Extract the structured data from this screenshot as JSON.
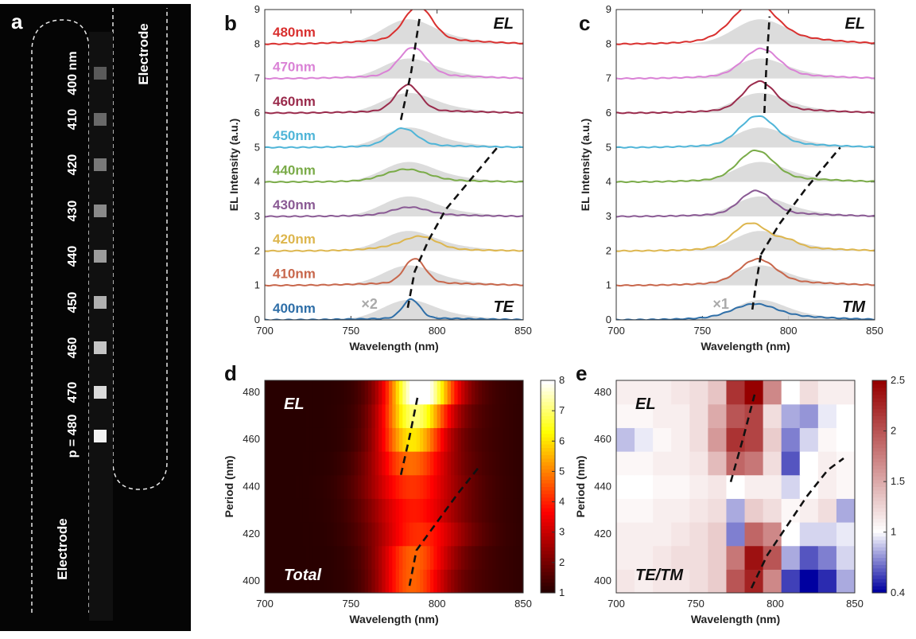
{
  "panel_a": {
    "letter": "a",
    "electrode_label_right": "Electrode",
    "electrode_label_left": "Electrode",
    "period_labels": [
      "400 nm",
      "410",
      "420",
      "430",
      "440",
      "450",
      "460",
      "470",
      "p = 480"
    ],
    "background_color": "#050505"
  },
  "chart_data": [
    {
      "id": "b",
      "type": "line",
      "letter": "b",
      "xlabel": "Wavelength (nm)",
      "ylabel": "EL Intensity (a.u.)",
      "xlim": [
        700,
        850
      ],
      "ylim": [
        0,
        9
      ],
      "xticks": [
        700,
        750,
        800,
        850
      ],
      "yticks": [
        0,
        1,
        2,
        3,
        4,
        5,
        6,
        7,
        8,
        9
      ],
      "corner_label_top": "EL",
      "corner_label_bottom": "TE",
      "multiplier": "×2",
      "series": [
        {
          "name": "400nm",
          "color": "#2f6fa8",
          "offset": 0,
          "peaks": [
            {
              "c": 785,
              "w": 5,
              "a": 0.55
            }
          ],
          "broad_amp": 0.05
        },
        {
          "name": "410nm",
          "color": "#c8674c",
          "offset": 1,
          "peaks": [
            {
              "c": 787,
              "w": 6,
              "a": 0.7
            }
          ],
          "broad_amp": 0.08
        },
        {
          "name": "420nm",
          "color": "#ddb64e",
          "offset": 2,
          "peaks": [
            {
              "c": 791,
              "w": 9,
              "a": 0.3
            },
            {
              "c": 780,
              "w": 14,
              "a": 0.1
            }
          ],
          "broad_amp": 0.05
        },
        {
          "name": "430nm",
          "color": "#8a5a94",
          "offset": 3,
          "peaks": [
            {
              "c": 784,
              "w": 10,
              "a": 0.22
            }
          ],
          "broad_amp": 0.05
        },
        {
          "name": "440nm",
          "color": "#7aab48",
          "offset": 4,
          "peaks": [
            {
              "c": 782,
              "w": 12,
              "a": 0.32
            }
          ],
          "broad_amp": 0.05
        },
        {
          "name": "450nm",
          "color": "#4fb5d8",
          "offset": 5,
          "peaks": [
            {
              "c": 780,
              "w": 8,
              "a": 0.5
            }
          ],
          "broad_amp": 0.06
        },
        {
          "name": "460nm",
          "color": "#9a2b4c",
          "offset": 6,
          "peaks": [
            {
              "c": 783,
              "w": 7,
              "a": 0.75
            }
          ],
          "broad_amp": 0.07
        },
        {
          "name": "470nm",
          "color": "#da82d6",
          "offset": 7,
          "peaks": [
            {
              "c": 786,
              "w": 8,
              "a": 0.8
            }
          ],
          "broad_amp": 0.1
        },
        {
          "name": "480nm",
          "color": "#d9302f",
          "offset": 8,
          "peaks": [
            {
              "c": 789,
              "w": 8,
              "a": 0.95
            }
          ],
          "broad_amp": 0.15
        }
      ],
      "dashed_lines": [
        [
          [
            779,
            5.8
          ],
          [
            785,
            7.2
          ],
          [
            790,
            8.8
          ]
        ],
        [
          [
            783,
            0.35
          ],
          [
            787,
            1.4
          ],
          [
            795,
            2.3
          ],
          [
            805,
            3.2
          ],
          [
            820,
            4.1
          ],
          [
            835,
            5.0
          ]
        ]
      ]
    },
    {
      "id": "c",
      "type": "line",
      "letter": "c",
      "xlabel": "Wavelength (nm)",
      "ylabel": "EL Intensity (a.u.)",
      "xlim": [
        700,
        850
      ],
      "ylim": [
        0,
        9
      ],
      "xticks": [
        700,
        750,
        800,
        850
      ],
      "yticks": [
        0,
        1,
        2,
        3,
        4,
        5,
        6,
        7,
        8,
        9
      ],
      "corner_label_top": "EL",
      "corner_label_bottom": "TM",
      "multiplier": "×1",
      "series": [
        {
          "name": "400nm",
          "color": "#2f6fa8",
          "offset": 0,
          "peaks": [
            {
              "c": 780,
              "w": 12,
              "a": 0.35
            }
          ],
          "broad_amp": 0.12
        },
        {
          "name": "410nm",
          "color": "#c8674c",
          "offset": 1,
          "peaks": [
            {
              "c": 782,
              "w": 10,
              "a": 0.65
            }
          ],
          "broad_amp": 0.12
        },
        {
          "name": "420nm",
          "color": "#ddb64e",
          "offset": 2,
          "peaks": [
            {
              "c": 778,
              "w": 10,
              "a": 0.7
            },
            {
              "c": 800,
              "w": 6,
              "a": 0.18
            }
          ],
          "broad_amp": 0.12
        },
        {
          "name": "430nm",
          "color": "#8a5a94",
          "offset": 3,
          "peaks": [
            {
              "c": 781,
              "w": 9,
              "a": 0.65
            }
          ],
          "broad_amp": 0.1
        },
        {
          "name": "440nm",
          "color": "#7aab48",
          "offset": 4,
          "peaks": [
            {
              "c": 781,
              "w": 10,
              "a": 0.8
            }
          ],
          "broad_amp": 0.12
        },
        {
          "name": "450nm",
          "color": "#4fb5d8",
          "offset": 5,
          "peaks": [
            {
              "c": 782,
              "w": 10,
              "a": 0.8
            }
          ],
          "broad_amp": 0.12
        },
        {
          "name": "460nm",
          "color": "#9a2b4c",
          "offset": 6,
          "peaks": [
            {
              "c": 783,
              "w": 9,
              "a": 0.8
            }
          ],
          "broad_amp": 0.12
        },
        {
          "name": "470nm",
          "color": "#da82d6",
          "offset": 7,
          "peaks": [
            {
              "c": 784,
              "w": 10,
              "a": 0.75
            }
          ],
          "broad_amp": 0.12
        },
        {
          "name": "480nm",
          "color": "#d9302f",
          "offset": 8,
          "peaks": [
            {
              "c": 780,
              "w": 12,
              "a": 1.0
            }
          ],
          "broad_amp": 0.22
        }
      ],
      "dashed_lines": [
        [
          [
            779,
            0.3
          ],
          [
            781,
            1.0
          ],
          [
            784,
            1.9
          ]
        ],
        [
          [
            786,
            6.0
          ],
          [
            787,
            7.2
          ],
          [
            789,
            8.8
          ]
        ],
        [
          [
            784,
            1.9
          ],
          [
            795,
            2.8
          ],
          [
            810,
            3.8
          ],
          [
            830,
            5.0
          ]
        ]
      ]
    },
    {
      "id": "d",
      "type": "heatmap",
      "letter": "d",
      "xlabel": "Wavelength (nm)",
      "ylabel": "Period (nm)",
      "xlim": [
        700,
        850
      ],
      "ylim": [
        395,
        485
      ],
      "xticks": [
        700,
        750,
        800,
        850
      ],
      "yticks": [
        400,
        420,
        440,
        460,
        480
      ],
      "corner_label_top": "EL",
      "corner_label_bottom": "Total",
      "colorbar": {
        "min": 1,
        "max": 8,
        "ticks": [
          1,
          2,
          3,
          4,
          5,
          6,
          7,
          8
        ],
        "scheme": "hot"
      },
      "rows": [
        {
          "period": 400,
          "peaks": [
            {
              "c": 785,
              "w": 14,
              "a": 3.2
            }
          ]
        },
        {
          "period": 410,
          "peaks": [
            {
              "c": 786,
              "w": 15,
              "a": 3.2
            }
          ]
        },
        {
          "period": 420,
          "peaks": [
            {
              "c": 788,
              "w": 18,
              "a": 2.6
            }
          ]
        },
        {
          "period": 430,
          "peaks": [
            {
              "c": 785,
              "w": 18,
              "a": 2.4
            }
          ]
        },
        {
          "period": 440,
          "peaks": [
            {
              "c": 784,
              "w": 18,
              "a": 2.7
            }
          ]
        },
        {
          "period": 450,
          "peaks": [
            {
              "c": 784,
              "w": 16,
              "a": 3.3
            }
          ]
        },
        {
          "period": 460,
          "peaks": [
            {
              "c": 785,
              "w": 14,
              "a": 4.6
            }
          ]
        },
        {
          "period": 470,
          "peaks": [
            {
              "c": 787,
              "w": 14,
              "a": 5.6
            }
          ]
        },
        {
          "period": 480,
          "peaks": [
            {
              "c": 790,
              "w": 14,
              "a": 7.0
            }
          ]
        }
      ],
      "dashed_lines": [
        [
          [
            779,
            445
          ],
          [
            784,
            461
          ],
          [
            789,
            479
          ]
        ],
        [
          [
            784,
            398
          ],
          [
            788,
            413
          ],
          [
            800,
            425
          ],
          [
            812,
            437
          ],
          [
            824,
            448
          ]
        ]
      ]
    },
    {
      "id": "e",
      "type": "heatmap",
      "letter": "e",
      "xlabel": "Wavelength (nm)",
      "ylabel": "Period (nm)",
      "xlim": [
        700,
        850
      ],
      "ylim": [
        395,
        485
      ],
      "xticks": [
        700,
        750,
        800,
        850
      ],
      "yticks": [
        400,
        420,
        440,
        460,
        480
      ],
      "corner_label_top": "EL",
      "corner_label_bottom": "TE/TM",
      "colorbar": {
        "min": 0.4,
        "max": 2.5,
        "ticks": [
          0.4,
          1,
          1.5,
          2,
          2.5
        ],
        "scheme": "bwr"
      },
      "rows": [
        {
          "period": 400,
          "cells": [
            1.15,
            1.1,
            1.15,
            1.15,
            1.2,
            1.3,
            2.0,
            2.3,
            1.7,
            0.55,
            0.4,
            0.5,
            0.8
          ]
        },
        {
          "period": 410,
          "cells": [
            1.1,
            1.1,
            1.15,
            1.2,
            1.2,
            1.3,
            1.8,
            2.4,
            2.0,
            0.8,
            0.6,
            0.7,
            0.9
          ]
        },
        {
          "period": 420,
          "cells": [
            1.1,
            1.1,
            1.1,
            1.15,
            1.2,
            1.3,
            0.7,
            1.9,
            1.7,
            1.0,
            0.9,
            0.9,
            0.95
          ]
        },
        {
          "period": 430,
          "cells": [
            1.05,
            1.05,
            1.1,
            1.1,
            1.15,
            1.2,
            0.8,
            1.3,
            1.2,
            1.05,
            1.1,
            1.2,
            0.8
          ]
        },
        {
          "period": 440,
          "cells": [
            1.0,
            1.0,
            1.05,
            1.05,
            1.1,
            1.15,
            1.0,
            1.1,
            1.1,
            0.9,
            1.0,
            1.1,
            1.05
          ]
        },
        {
          "period": 450,
          "cells": [
            1.05,
            1.05,
            1.1,
            1.1,
            1.15,
            1.4,
            1.9,
            1.8,
            1.2,
            0.6,
            1.0,
            1.1,
            1.05
          ]
        },
        {
          "period": 460,
          "cells": [
            0.85,
            0.95,
            1.05,
            1.1,
            1.2,
            1.6,
            2.2,
            2.1,
            1.3,
            0.7,
            0.9,
            1.05,
            1.0
          ]
        },
        {
          "period": 470,
          "cells": [
            1.05,
            1.05,
            1.1,
            1.1,
            1.2,
            1.5,
            2.0,
            2.1,
            1.2,
            0.8,
            0.75,
            0.95,
            1.0
          ]
        },
        {
          "period": 480,
          "cells": [
            1.1,
            1.1,
            1.1,
            1.15,
            1.2,
            1.35,
            2.2,
            2.5,
            1.7,
            1.0,
            1.2,
            1.1,
            1.1
          ]
        }
      ],
      "dashed_lines": [
        [
          [
            772,
            442
          ],
          [
            780,
            461
          ],
          [
            787,
            479
          ]
        ],
        [
          [
            785,
            397
          ],
          [
            795,
            411
          ],
          [
            808,
            424
          ],
          [
            820,
            436
          ],
          [
            833,
            447
          ],
          [
            843,
            452
          ]
        ]
      ]
    }
  ]
}
